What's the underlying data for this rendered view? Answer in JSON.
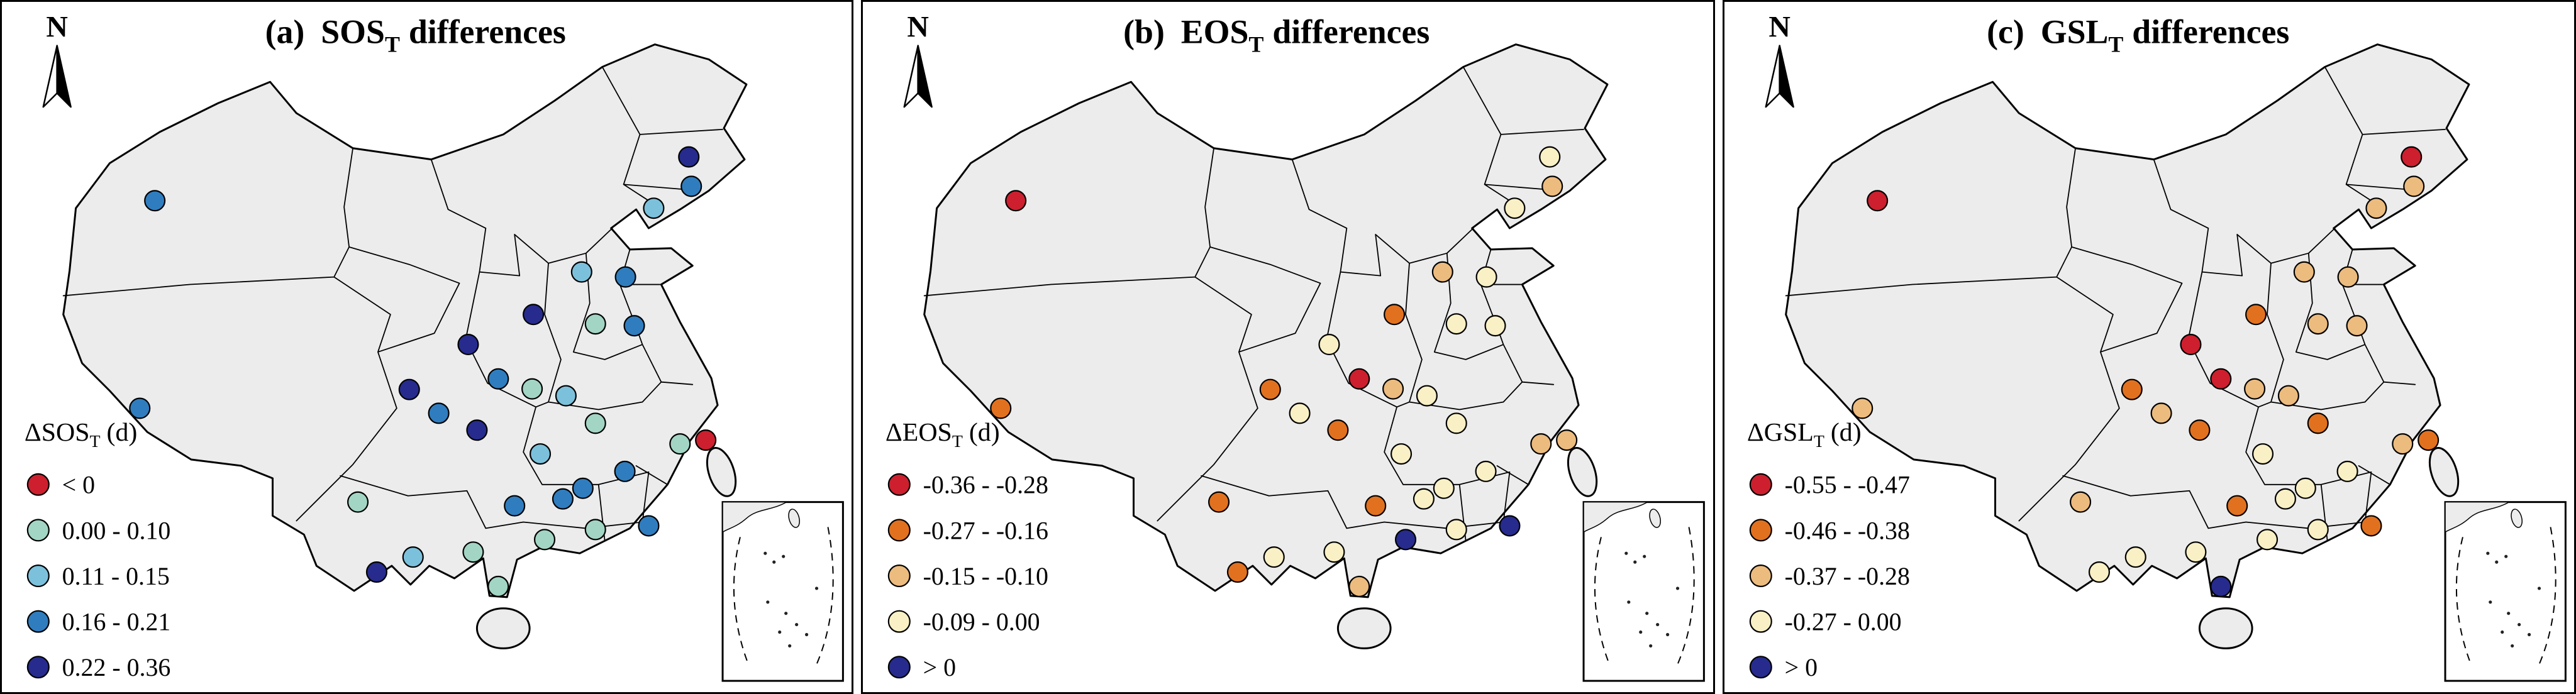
{
  "figure": {
    "map": {
      "land_fill": "#ececec",
      "border_color": "#000000"
    },
    "stations": [
      [
        244,
        318
      ],
      [
        220,
        650
      ],
      [
        1096,
        248
      ],
      [
        1100,
        295
      ],
      [
        1040,
        330
      ],
      [
        925,
        432
      ],
      [
        995,
        440
      ],
      [
        848,
        500
      ],
      [
        1009,
        518
      ],
      [
        947,
        515
      ],
      [
        744,
        548
      ],
      [
        650,
        620
      ],
      [
        792,
        603
      ],
      [
        846,
        619
      ],
      [
        900,
        630
      ],
      [
        697,
        658
      ],
      [
        758,
        685
      ],
      [
        947,
        674
      ],
      [
        859,
        723
      ],
      [
        1082,
        707
      ],
      [
        1123,
        701
      ],
      [
        994,
        751
      ],
      [
        927,
        778
      ],
      [
        568,
        800
      ],
      [
        818,
        806
      ],
      [
        895,
        795
      ],
      [
        947,
        844
      ],
      [
        656,
        888
      ],
      [
        1032,
        838
      ],
      [
        598,
        912
      ],
      [
        752,
        880
      ],
      [
        866,
        860
      ],
      [
        792,
        935
      ]
    ],
    "panels": [
      {
        "id": "a",
        "north_label": "N",
        "title": {
          "prefix": "(a)",
          "acronym": "SOS",
          "subscript": "T",
          "suffix": "differences"
        },
        "legend": {
          "title": {
            "delta": "Δ",
            "acronym": "SOS",
            "subscript": "T",
            "unit": "(d)"
          },
          "classes": [
            {
              "label": "< 0",
              "color": "#cd1f2e"
            },
            {
              "label": "0.00 - 0.10",
              "color": "#a2d5c4"
            },
            {
              "label": "0.11 - 0.15",
              "color": "#7cc1dc"
            },
            {
              "label": "0.16 - 0.21",
              "color": "#2f7dbf"
            },
            {
              "label": "0.22 - 0.36",
              "color": "#262b8d"
            }
          ]
        },
        "station_classes": [
          3,
          3,
          4,
          3,
          2,
          2,
          3,
          4,
          3,
          1,
          4,
          4,
          3,
          1,
          2,
          3,
          4,
          1,
          2,
          1,
          0,
          3,
          3,
          1,
          3,
          3,
          1,
          2,
          3,
          4,
          1,
          1,
          1
        ]
      },
      {
        "id": "b",
        "north_label": "N",
        "title": {
          "prefix": "(b)",
          "acronym": "EOS",
          "subscript": "T",
          "suffix": "differences"
        },
        "legend": {
          "title": {
            "delta": "Δ",
            "acronym": "EOS",
            "subscript": "T",
            "unit": "(d)"
          },
          "classes": [
            {
              "label": "-0.36 - -0.28",
              "color": "#cd1f2e"
            },
            {
              "label": "-0.27 - -0.16",
              "color": "#e2711f"
            },
            {
              "label": "-0.15 - -0.10",
              "color": "#ecbb7e"
            },
            {
              "label": "-0.09 -  0.00",
              "color": "#f9f0c5"
            },
            {
              "label": "> 0",
              "color": "#262b8d"
            }
          ]
        },
        "station_classes": [
          0,
          1,
          3,
          2,
          3,
          2,
          3,
          1,
          3,
          3,
          3,
          1,
          0,
          2,
          3,
          3,
          1,
          3,
          3,
          2,
          2,
          3,
          3,
          1,
          1,
          3,
          3,
          3,
          4,
          1,
          3,
          4,
          2
        ]
      },
      {
        "id": "c",
        "north_label": "N",
        "title": {
          "prefix": "(c)",
          "acronym": "GSL",
          "subscript": "T",
          "suffix": "differences"
        },
        "legend": {
          "title": {
            "delta": "Δ",
            "acronym": "GSL",
            "subscript": "T",
            "unit": "(d)"
          },
          "classes": [
            {
              "label": "-0.55 - -0.47",
              "color": "#cd1f2e"
            },
            {
              "label": "-0.46 - -0.38",
              "color": "#e2711f"
            },
            {
              "label": "-0.37 - -0.28",
              "color": "#ecbb7e"
            },
            {
              "label": "-0.27 -  0.00",
              "color": "#f9f0c5"
            },
            {
              "label": "> 0",
              "color": "#262b8d"
            }
          ]
        },
        "station_classes": [
          0,
          2,
          0,
          2,
          2,
          2,
          2,
          1,
          2,
          2,
          0,
          1,
          0,
          2,
          2,
          2,
          1,
          1,
          3,
          2,
          1,
          3,
          3,
          2,
          1,
          3,
          3,
          3,
          1,
          3,
          3,
          3,
          4
        ]
      }
    ]
  }
}
